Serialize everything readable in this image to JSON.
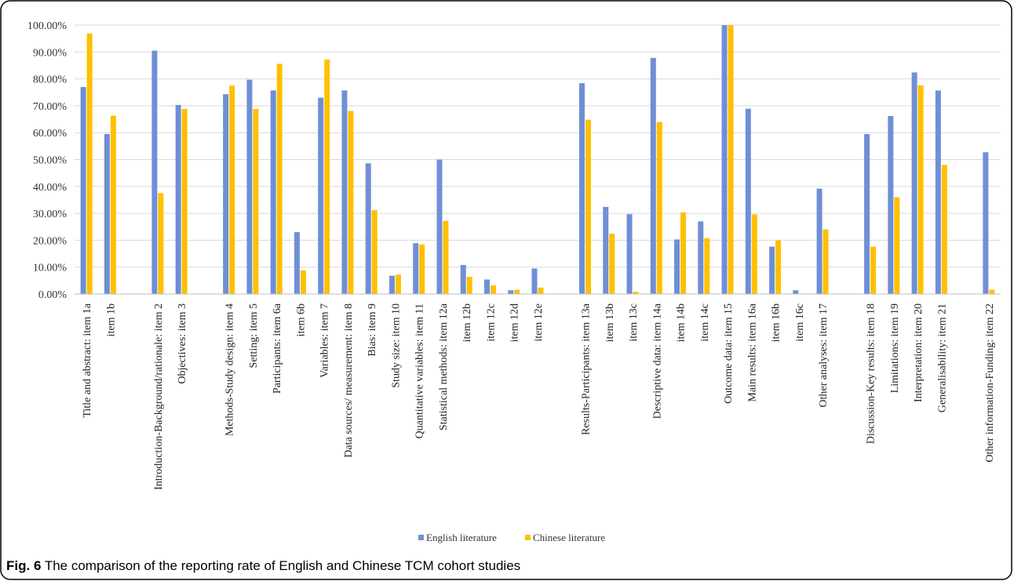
{
  "caption": {
    "label": "Fig. 6",
    "text": " The comparison of the reporting rate of English and Chinese TCM cohort studies"
  },
  "colors": {
    "english": "#6f8fd6",
    "chinese": "#ffc000",
    "grid": "#d9d9d9",
    "frame": "#000000"
  },
  "chart_data": {
    "type": "bar",
    "title": "",
    "xlabel": "",
    "ylabel": "",
    "ylim": [
      0,
      100
    ],
    "yticks": [
      "0.00%",
      "10.00%",
      "20.00%",
      "30.00%",
      "40.00%",
      "50.00%",
      "60.00%",
      "70.00%",
      "80.00%",
      "90.00%",
      "100.00%"
    ],
    "grid": true,
    "legend_position": "bottom-center",
    "categories": [
      "Title and abstract: item 1a",
      "item 1b",
      "",
      "Introduction-Background/rationale: item 2",
      "Objectives: item 3",
      "",
      "Methods-Study design: item 4",
      "Setting: item 5",
      "Participants: item 6a",
      "item 6b",
      "Variables: item 7",
      "Data sources/ measurement: item 8",
      "Bias: item 9",
      "Study size: item 10",
      "Quantitative variables: item 11",
      "Statistical methods: item 12a",
      "item 12b",
      "item 12c",
      "item 12d",
      "item 12e",
      "",
      "Results-Participants: item 13a",
      "item 13b",
      "item 13c",
      "Descriptive data: item 14a",
      "item 14b",
      "item 14c",
      "Outcome data: item 15",
      "Main results: item 16a",
      "item 16b",
      "item 16c",
      "Other analyses: item 17",
      "",
      "Discussion-Key results: item 18",
      "Limitations: item 19",
      "Interpretation: item 20",
      "Generalisability: item 21",
      "",
      "Other information-Funding: item 22"
    ],
    "series": [
      {
        "name": "English literature",
        "values": [
          77,
          59.5,
          null,
          90.5,
          70.3,
          null,
          74.3,
          79.7,
          75.7,
          23,
          73,
          75.7,
          48.6,
          6.8,
          18.9,
          50,
          10.8,
          5.4,
          1.4,
          9.5,
          null,
          78.4,
          32.4,
          29.7,
          87.8,
          20.3,
          27,
          100,
          68.9,
          17.6,
          1.4,
          39.2,
          null,
          59.5,
          66.2,
          82.4,
          75.7,
          null,
          52.7
        ]
      },
      {
        "name": "Chinese literature",
        "values": [
          96.9,
          66.3,
          null,
          37.5,
          68.8,
          null,
          77.5,
          68.8,
          85.6,
          8.8,
          87.2,
          68.1,
          31.2,
          7.2,
          18.4,
          27.2,
          6.4,
          3.2,
          1.6,
          2.4,
          null,
          64.8,
          22.4,
          0.8,
          64,
          30.4,
          20.8,
          100,
          29.6,
          20,
          0,
          24,
          null,
          17.6,
          36,
          77.6,
          48,
          null,
          1.6
        ]
      }
    ]
  }
}
